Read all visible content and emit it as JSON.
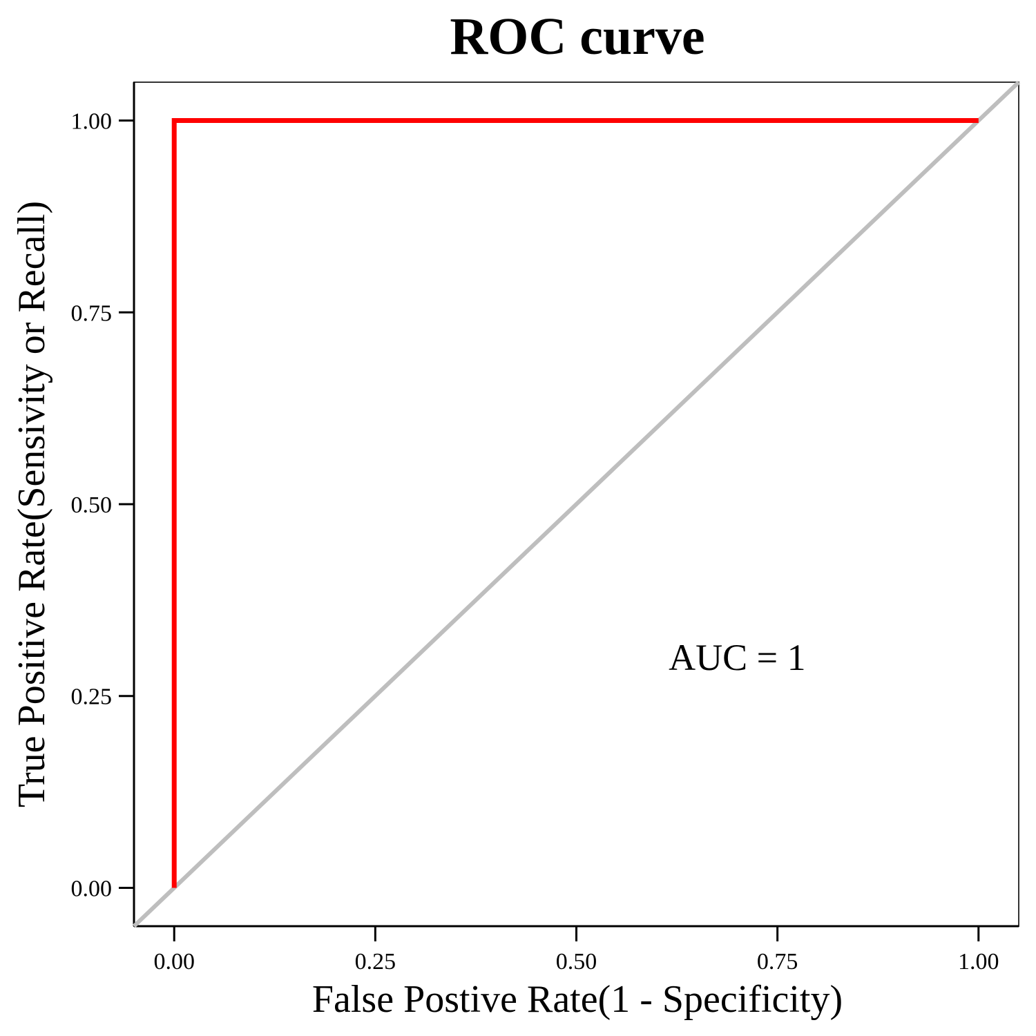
{
  "chart_data": {
    "type": "line",
    "title": "ROC curve",
    "xlabel": "False Postive Rate(1 - Specificity)",
    "ylabel": "True Positive Rate(Sensivity or Recall)",
    "xlim": [
      -0.05,
      1.05
    ],
    "ylim": [
      -0.05,
      1.05
    ],
    "xticks": [
      0,
      0.25,
      0.5,
      0.75,
      1
    ],
    "yticks": [
      0,
      0.25,
      0.5,
      0.75,
      1
    ],
    "xtick_labels": [
      "0.00",
      "0.25",
      "0.50",
      "0.75",
      "1.00"
    ],
    "ytick_labels": [
      "0.00",
      "0.25",
      "0.50",
      "0.75",
      "1.00"
    ],
    "grid": false,
    "series": [
      {
        "color": "#ff0000",
        "x": [
          0,
          0,
          1
        ],
        "y": [
          0,
          1,
          1
        ]
      }
    ],
    "reference_line": {
      "color": "#bebebe",
      "x": [
        -0.05,
        1.05
      ],
      "y": [
        -0.05,
        1.05
      ]
    },
    "annotation": {
      "text": "AUC = 1",
      "x": 0.7,
      "y": 0.3
    }
  }
}
